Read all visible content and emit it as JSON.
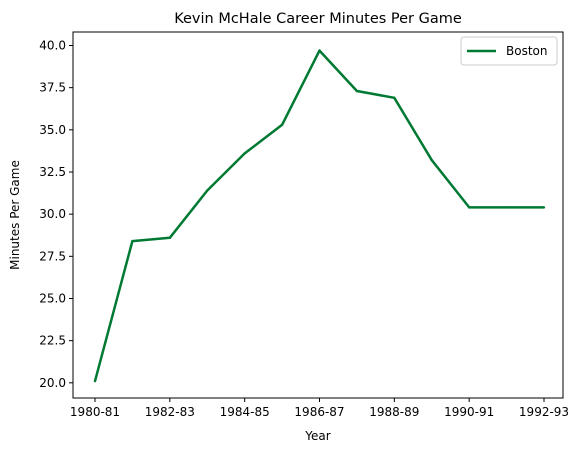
{
  "chart_data": {
    "type": "line",
    "title": "Kevin McHale  Career Minutes Per Game",
    "xlabel": "Year",
    "ylabel": "Minutes Per Game",
    "categories": [
      "1980-81",
      "1981-82",
      "1982-83",
      "1983-84",
      "1984-85",
      "1985-86",
      "1986-87",
      "1987-88",
      "1988-89",
      "1989-90",
      "1990-91",
      "1991-92",
      "1992-93"
    ],
    "x_tick_labels": [
      "1980-81",
      "1982-83",
      "1984-85",
      "1986-87",
      "1988-89",
      "1990-91",
      "1992-93"
    ],
    "y_tick_labels": [
      "20.0",
      "22.5",
      "25.0",
      "27.5",
      "30.0",
      "32.5",
      "35.0",
      "37.5",
      "40.0"
    ],
    "ylim": [
      19.1,
      40.8
    ],
    "grid": false,
    "legend_position": "top-right",
    "series": [
      {
        "name": "Boston",
        "color": "#007a33",
        "values": [
          20.1,
          28.4,
          28.6,
          31.4,
          33.6,
          35.3,
          39.7,
          37.3,
          36.9,
          33.2,
          30.4,
          30.4,
          30.4
        ]
      }
    ]
  }
}
